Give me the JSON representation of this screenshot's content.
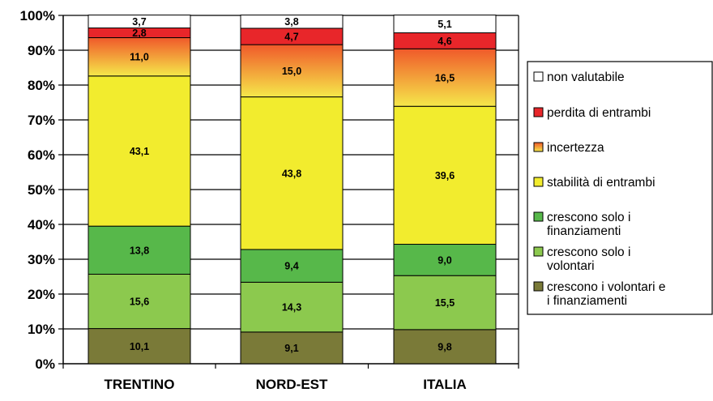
{
  "chart_data": {
    "type": "bar",
    "stacked": true,
    "categories": [
      "TRENTINO",
      "NORD-EST",
      "ITALIA"
    ],
    "ylim": [
      0,
      100
    ],
    "yticks": [
      "0%",
      "10%",
      "20%",
      "30%",
      "40%",
      "50%",
      "60%",
      "70%",
      "80%",
      "90%",
      "100%"
    ],
    "grid": true,
    "legend_position": "right",
    "series": [
      {
        "name": "crescono i volontari e i finanziamenti",
        "legend_lines": [
          "crescono i volontari e",
          "i finanziamenti"
        ],
        "color": "#7a7a38",
        "values": [
          10.1,
          9.1,
          9.8
        ],
        "labels": [
          "10,1",
          "9,1",
          "9,8"
        ]
      },
      {
        "name": "crescono solo i volontari",
        "legend_lines": [
          "crescono solo i",
          "volontari"
        ],
        "color": "#8cc94e",
        "values": [
          15.6,
          14.3,
          15.5
        ],
        "labels": [
          "15,6",
          "14,3",
          "15,5"
        ]
      },
      {
        "name": "crescono solo i finanziamenti",
        "legend_lines": [
          "crescono solo i",
          "finanziamenti"
        ],
        "color": "#57b84a",
        "values": [
          13.8,
          9.4,
          9.0
        ],
        "labels": [
          "13,8",
          "9,4",
          "9,0"
        ]
      },
      {
        "name": "stabilità di entrambi",
        "legend_lines": [
          "stabilità di entrambi"
        ],
        "color": "#f2ec2e",
        "values": [
          43.1,
          43.8,
          39.6
        ],
        "labels": [
          "43,1",
          "43,8",
          "39,6"
        ]
      },
      {
        "name": "incertezza",
        "legend_lines": [
          "incertezza"
        ],
        "color": "#f59a2b",
        "gradient": [
          "#f5e84a",
          "#f0592a"
        ],
        "values": [
          11.0,
          15.0,
          16.5
        ],
        "labels": [
          "11,0",
          "15,0",
          "16,5"
        ]
      },
      {
        "name": "perdita di entrambi",
        "legend_lines": [
          "perdita di entrambi"
        ],
        "color": "#e8262a",
        "values": [
          2.8,
          4.7,
          4.6
        ],
        "labels": [
          "2,8",
          "4,7",
          "4,6"
        ]
      },
      {
        "name": "non valutabile",
        "legend_lines": [
          "non valutabile"
        ],
        "color": "#ffffff",
        "values": [
          3.7,
          3.8,
          5.1
        ],
        "labels": [
          "3,7",
          "3,8",
          "5,1"
        ]
      }
    ]
  }
}
